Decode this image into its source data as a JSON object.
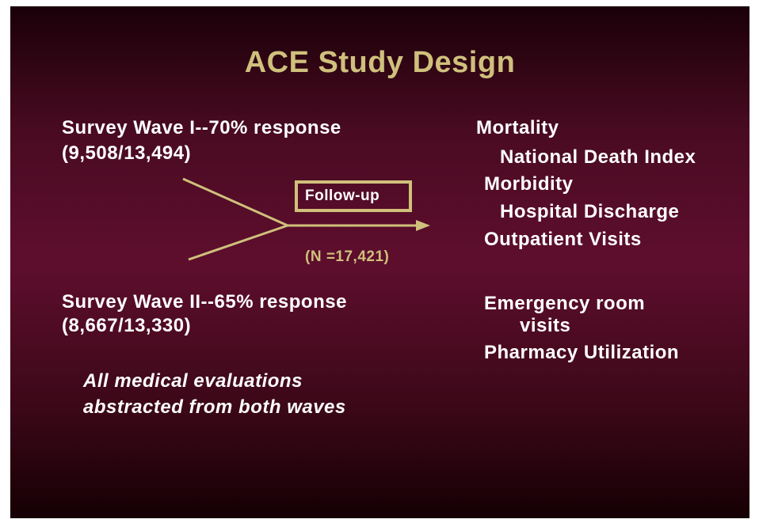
{
  "title": "ACE Study Design",
  "wave1": {
    "line1": "Survey Wave I--70% response",
    "line2": "(9,508/13,494)"
  },
  "wave2": {
    "line1": "Survey Wave II--65% response",
    "line2": "(8,667/13,330)"
  },
  "followup": {
    "label": "Follow-up",
    "n": "(N =17,421)"
  },
  "note": {
    "line1": "All medical evaluations",
    "line2": "abstracted from both waves"
  },
  "outcomes": [
    "Mortality",
    "National Death Index",
    "Morbidity",
    "Hospital Discharge",
    "Outpatient Visits",
    "Emergency room",
    "visits",
    "Pharmacy Utilization"
  ]
}
